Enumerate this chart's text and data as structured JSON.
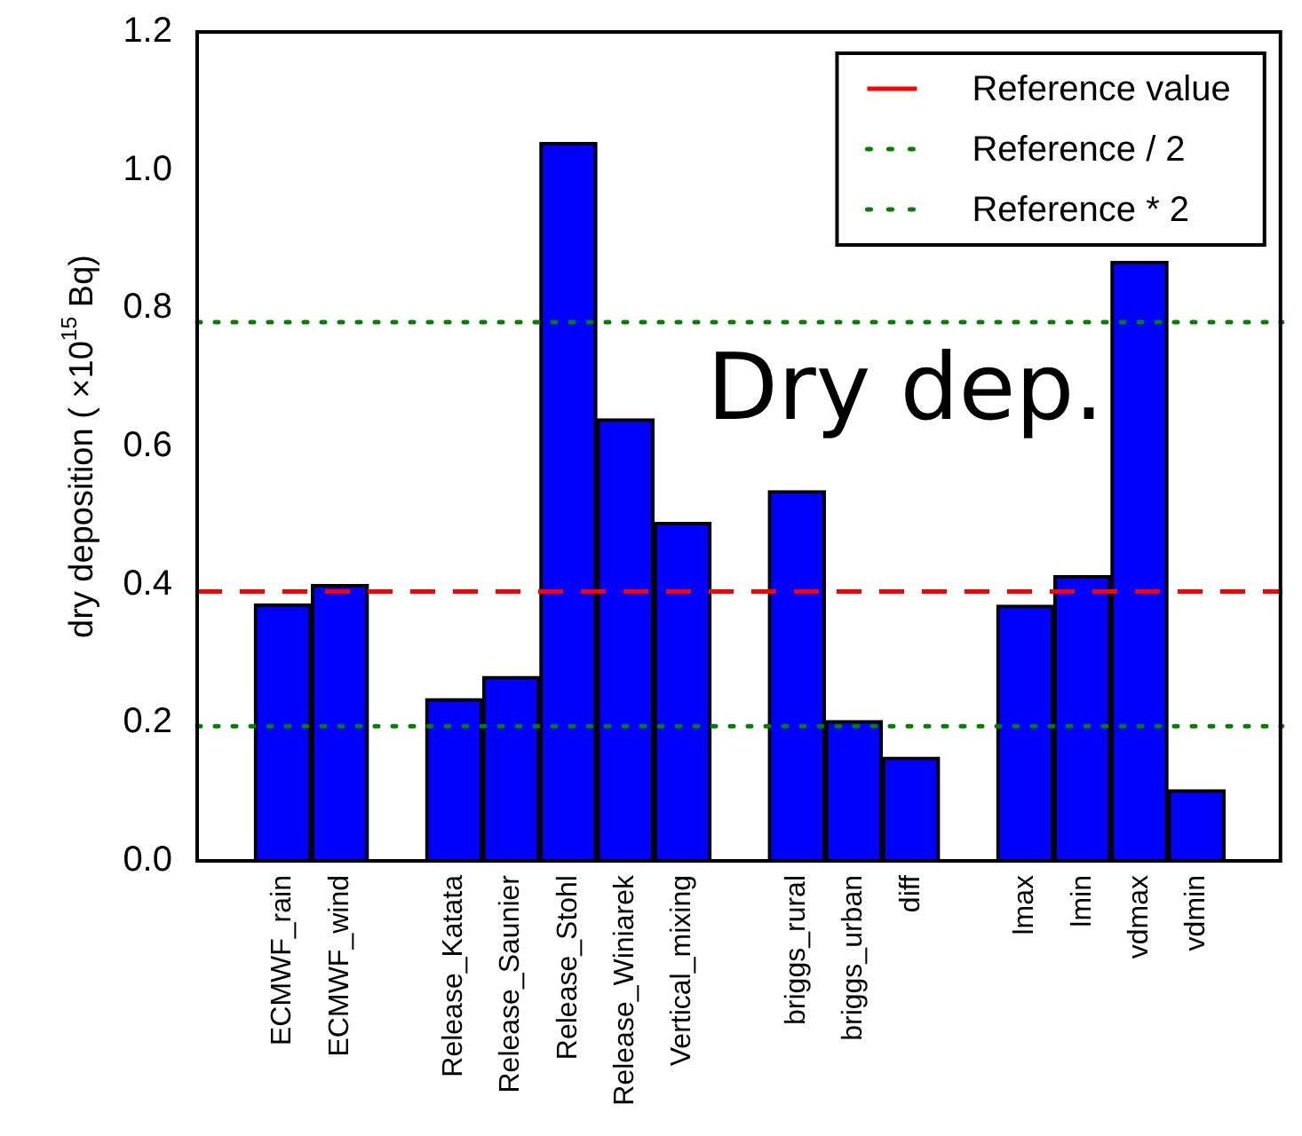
{
  "chart_data": {
    "type": "bar",
    "ylabel": "dry deposition ( ×10$^{15}$ Bq)",
    "categories": [
      null,
      "ECMWF_rain",
      "ECMWF_wind",
      null,
      "Release_Katata",
      "Release_Saunier",
      "Release_Stohl",
      "Release_Winiarek",
      "Vertical_mixing",
      null,
      "briggs_rural",
      "briggs_urban",
      "diff",
      null,
      "lmax",
      "lmin",
      "vdmax",
      "vdmin",
      null
    ],
    "values": [
      null,
      0.372,
      0.4,
      null,
      0.235,
      0.267,
      1.04,
      0.64,
      0.49,
      null,
      0.536,
      0.203,
      0.15,
      null,
      0.37,
      0.413,
      0.868,
      0.103,
      null
    ],
    "color": "#0000ff",
    "ylim": [
      0,
      1.2
    ],
    "yticks": [
      {
        "value": 0,
        "label": "0.0"
      },
      0.2,
      0.4,
      0.6,
      0.8,
      {
        "value": 1,
        "label": "1.0"
      },
      1.2
    ],
    "grid": false,
    "legend": "top right",
    "ref_lines": [
      {
        "axis": "y",
        "value": 0.39,
        "label": "Reference value",
        "color": "#ff0000",
        "line_style": "dashed"
      },
      {
        "axis": "y",
        "value": 0.195,
        "label": "Reference / 2",
        "color": "#008000",
        "line_style": "dotted"
      },
      {
        "axis": "y",
        "value": 0.78,
        "label": "Reference * 2",
        "color": "#008000",
        "line_style": "dotted"
      }
    ],
    "annotations": [
      "Dry dep."
    ]
  }
}
